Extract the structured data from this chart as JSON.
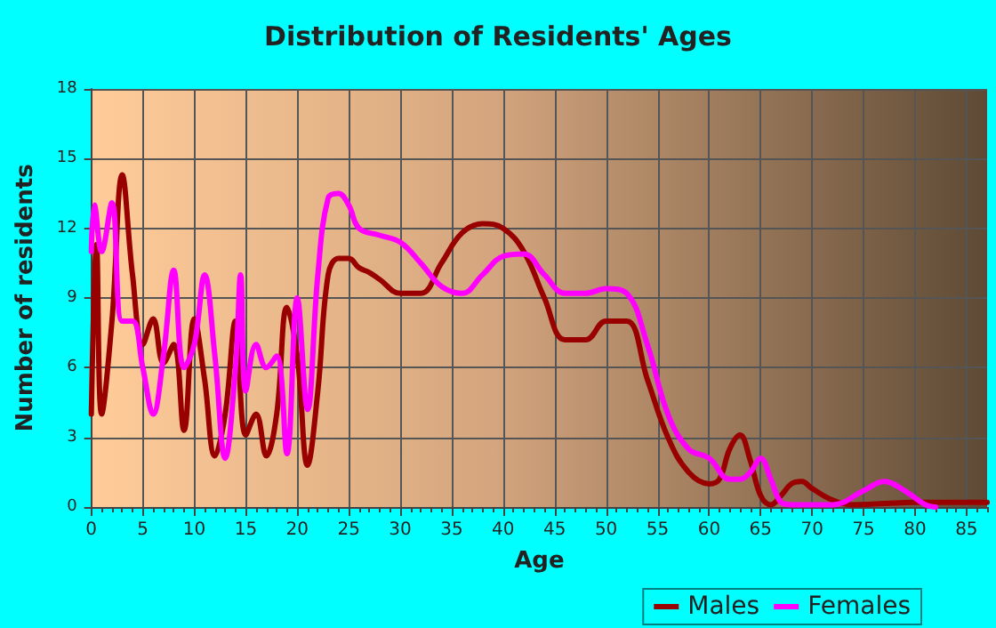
{
  "chart_data": {
    "type": "line",
    "title": "Distribution of Residents' Ages",
    "xlabel": "Age",
    "ylabel": "Number of residents",
    "xlim": [
      0,
      87
    ],
    "xticks": [
      0,
      5,
      10,
      15,
      20,
      25,
      30,
      35,
      40,
      45,
      50,
      55,
      60,
      65,
      70,
      75,
      80,
      85
    ],
    "ylim": [
      0,
      18
    ],
    "yticks": [
      0,
      3,
      6,
      9,
      12,
      15,
      18
    ],
    "grid": true,
    "legend": "bottom right",
    "marker": "none",
    "line_style": "solid",
    "series": [
      {
        "name": "Males",
        "color": "#990000",
        "x": [
          0,
          0.5,
          1,
          2,
          3,
          4,
          5,
          6,
          7,
          8,
          9,
          10,
          11,
          12,
          13,
          14,
          15,
          16,
          17,
          18,
          19,
          20,
          21,
          22,
          23,
          24,
          25,
          26,
          27,
          28,
          30,
          32,
          34,
          36,
          38,
          40,
          42,
          44,
          46,
          48,
          50,
          52,
          54,
          56,
          58,
          60,
          61,
          62,
          63,
          64,
          65,
          66,
          67,
          68,
          69,
          70,
          72,
          74,
          80,
          87
        ],
        "values": [
          4,
          11.3,
          4,
          8,
          14.3,
          10,
          7,
          8.1,
          6.2,
          7,
          3.3,
          8.1,
          5.5,
          2.2,
          4,
          8,
          3.1,
          4,
          2.2,
          4,
          8.6,
          6.5,
          1.8,
          5,
          10,
          10.7,
          10.7,
          10.3,
          10.1,
          9.8,
          9.2,
          9.2,
          10.5,
          11.8,
          12.2,
          12,
          11,
          9,
          7.2,
          7.2,
          8,
          8,
          5.5,
          3,
          1.5,
          1,
          1.2,
          2.5,
          3.1,
          2,
          0.5,
          0.1,
          0.5,
          1,
          1.1,
          0.8,
          0.3,
          0.1,
          0.2,
          0.2
        ]
      },
      {
        "name": "Females",
        "color": "#ff00ff",
        "x": [
          0,
          0.3,
          1,
          2,
          3,
          4,
          5,
          6,
          7,
          8,
          9,
          10,
          11,
          12,
          13,
          14,
          14.5,
          15,
          16,
          17,
          18,
          19,
          20,
          21,
          22,
          23,
          24,
          25,
          26,
          28,
          30,
          32,
          34,
          36,
          38,
          40,
          42,
          44,
          46,
          48,
          50,
          52,
          54,
          56,
          58,
          60,
          62,
          63,
          64,
          65,
          66,
          67,
          68,
          72,
          75,
          77,
          79,
          81,
          82
        ],
        "values": [
          11,
          13,
          11,
          13.1,
          8,
          8,
          6,
          4,
          6.5,
          10.2,
          6,
          7,
          10,
          6.5,
          2.1,
          6,
          10,
          5,
          7,
          6,
          6.5,
          2.3,
          9,
          4.2,
          10,
          13.3,
          13.5,
          13,
          12,
          11.7,
          11.4,
          10.5,
          9.5,
          9.2,
          10,
          10.8,
          10.9,
          10,
          9.2,
          9.2,
          9.4,
          9.2,
          7,
          4,
          2.5,
          2.1,
          1.2,
          1.2,
          1.5,
          2.1,
          1.2,
          0.2,
          0.1,
          0.1,
          0.7,
          1.1,
          0.7,
          0.1,
          0
        ]
      }
    ]
  }
}
